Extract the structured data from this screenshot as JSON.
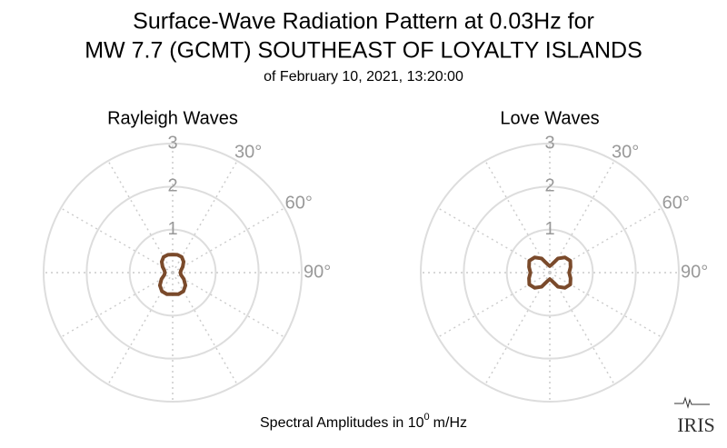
{
  "header": {
    "title": [
      "Surface-Wave Radiation Pattern at 0.03Hz for",
      "MW 7.7 (GCMT) SOUTHEAST OF LOYALTY ISLANDS"
    ],
    "subtitle": "of February 10, 2021, 13:20:00",
    "footer": "Spectral Amplitudes in 10",
    "footer_exponent": "0",
    "footer_unit": "m/Hz",
    "logo": "IRIS"
  },
  "chart_data": [
    {
      "type": "polar",
      "title": "Rayleigh Waves",
      "color": "#7a4a2b",
      "theta": [
        0,
        15,
        30,
        45,
        60,
        75,
        90,
        105,
        120,
        135,
        150,
        165,
        180,
        195,
        210,
        225,
        240,
        255,
        270,
        285,
        300,
        315,
        330,
        345
      ],
      "values": [
        0.42,
        0.43,
        0.42,
        0.36,
        0.27,
        0.2,
        0.18,
        0.2,
        0.3,
        0.42,
        0.5,
        0.52,
        0.5,
        0.52,
        0.5,
        0.42,
        0.3,
        0.2,
        0.18,
        0.2,
        0.27,
        0.36,
        0.42,
        0.43
      ],
      "rlim": [
        0,
        3
      ],
      "rticks": [
        1,
        2,
        3
      ],
      "thetagrid": [
        0,
        30,
        60,
        90,
        120,
        150,
        180,
        210,
        240,
        270,
        300,
        330
      ],
      "thetaticks": [
        {
          "value": 30,
          "label": "30°"
        },
        {
          "value": 60,
          "label": "60°"
        },
        {
          "value": 90,
          "label": "90°"
        }
      ]
    },
    {
      "type": "polar",
      "title": "Love Waves",
      "color": "#7a4a2b",
      "theta": [
        0,
        15,
        30,
        45,
        60,
        75,
        90,
        105,
        120,
        135,
        150,
        165,
        180,
        195,
        210,
        225,
        240,
        255,
        270,
        285,
        300,
        315,
        330,
        345
      ],
      "values": [
        0.15,
        0.2,
        0.38,
        0.5,
        0.55,
        0.5,
        0.45,
        0.5,
        0.55,
        0.5,
        0.38,
        0.2,
        0.15,
        0.2,
        0.38,
        0.5,
        0.55,
        0.5,
        0.45,
        0.5,
        0.55,
        0.5,
        0.38,
        0.2
      ],
      "rlim": [
        0,
        3
      ],
      "rticks": [
        1,
        2,
        3
      ],
      "thetagrid": [
        0,
        30,
        60,
        90,
        120,
        150,
        180,
        210,
        240,
        270,
        300,
        330
      ],
      "thetaticks": [
        {
          "value": 30,
          "label": "30°"
        },
        {
          "value": 60,
          "label": "60°"
        },
        {
          "value": 90,
          "label": "90°"
        }
      ]
    }
  ]
}
